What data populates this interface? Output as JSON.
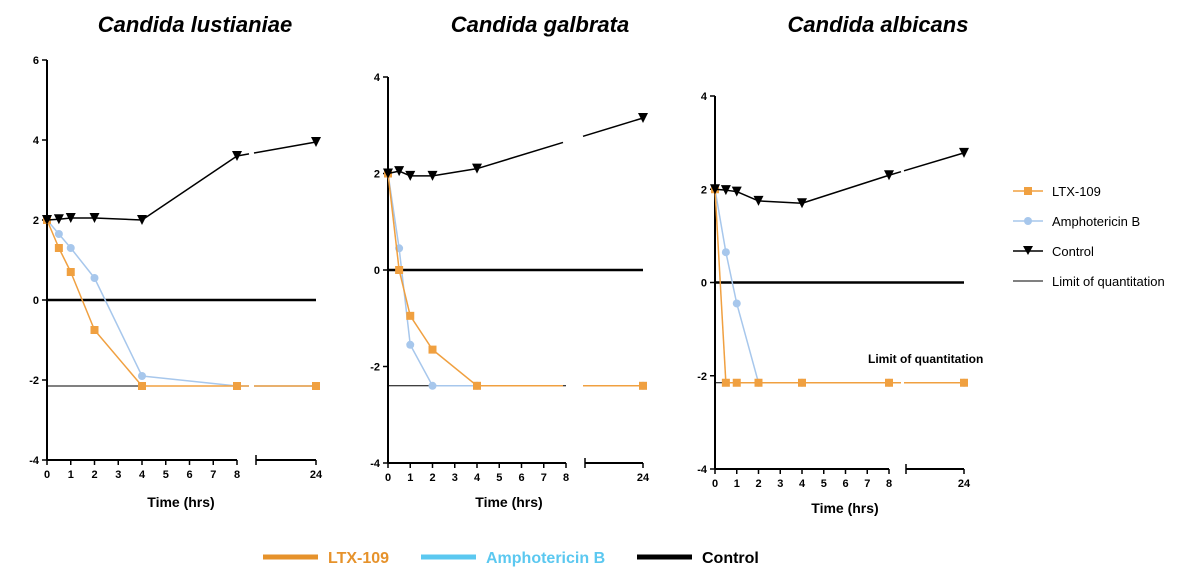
{
  "chart_data": [
    {
      "type": "line",
      "title": "Candida lustianiae",
      "xlabel": "Time (hrs)",
      "ylabel": "",
      "ylim": [
        -4,
        6
      ],
      "yticks": [
        "-4",
        "-2",
        "0",
        "2",
        "4",
        "6"
      ],
      "xticks_main": [
        "0",
        "1",
        "2",
        "3",
        "4",
        "5",
        "6",
        "7",
        "8"
      ],
      "xticks_break": [
        "24"
      ],
      "limit_of_quantitation": -2.15,
      "reference_line": 0,
      "series": [
        {
          "name": "LTX-109",
          "x": [
            0,
            0.5,
            1,
            2,
            4,
            8,
            24
          ],
          "y": [
            2.0,
            1.3,
            0.7,
            -0.75,
            -2.15,
            -2.15,
            -2.15
          ]
        },
        {
          "name": "Amphotericin B",
          "x": [
            0,
            0.5,
            1,
            2,
            4,
            8,
            24
          ],
          "y": [
            2.0,
            1.65,
            1.3,
            0.55,
            -1.9,
            -2.15,
            -2.15
          ]
        },
        {
          "name": "Control",
          "x": [
            0,
            0.5,
            1,
            2,
            4,
            8,
            24
          ],
          "y": [
            2.0,
            2.02,
            2.05,
            2.05,
            2.0,
            3.6,
            3.95
          ]
        }
      ]
    },
    {
      "type": "line",
      "title": "Candida galbrata",
      "xlabel": "Time (hrs)",
      "ylabel": "",
      "ylim": [
        -4,
        4
      ],
      "yticks": [
        "-4",
        "-2",
        "0",
        "2",
        "4"
      ],
      "xticks_main": [
        "0",
        "1",
        "2",
        "3",
        "4",
        "5",
        "6",
        "7",
        "8"
      ],
      "xticks_break": [
        "24"
      ],
      "limit_of_quantitation": -2.4,
      "reference_line": 0,
      "series": [
        {
          "name": "LTX-109",
          "x": [
            0,
            0.5,
            1,
            2,
            4,
            24
          ],
          "y": [
            2.0,
            0.0,
            -0.95,
            -1.65,
            -2.4,
            -2.4
          ]
        },
        {
          "name": "Amphotericin B",
          "x": [
            0,
            0.5,
            1,
            2,
            4,
            24
          ],
          "y": [
            2.0,
            0.45,
            -1.55,
            -2.4,
            -2.4,
            -2.4
          ]
        },
        {
          "name": "Control",
          "x": [
            0,
            0.5,
            1,
            2,
            4,
            24
          ],
          "y": [
            2.0,
            2.05,
            1.95,
            1.95,
            2.1,
            3.15
          ]
        }
      ]
    },
    {
      "type": "line",
      "title": "Candida albicans",
      "xlabel": "Time (hrs)",
      "ylabel": "",
      "ylim": [
        -4,
        4
      ],
      "yticks": [
        "-4",
        "-2",
        "0",
        "2",
        "4"
      ],
      "xticks_main": [
        "0",
        "1",
        "2",
        "3",
        "4",
        "5",
        "6",
        "7",
        "8"
      ],
      "xticks_break": [
        "24"
      ],
      "limit_of_quantitation": -2.15,
      "reference_line": 0,
      "annotation": "Limit of quantitation",
      "series": [
        {
          "name": "LTX-109",
          "x": [
            0,
            0.5,
            1,
            2,
            4,
            8,
            24
          ],
          "y": [
            2.0,
            -2.15,
            -2.15,
            -2.15,
            -2.15,
            -2.15,
            -2.15
          ]
        },
        {
          "name": "Amphotericin B",
          "x": [
            0,
            0.5,
            1,
            2,
            4,
            8,
            24
          ],
          "y": [
            2.0,
            0.65,
            -0.45,
            -2.15,
            -2.15,
            -2.15,
            -2.15
          ]
        },
        {
          "name": "Control",
          "x": [
            0,
            0.5,
            1,
            2,
            4,
            8,
            24
          ],
          "y": [
            2.0,
            1.98,
            1.95,
            1.75,
            1.7,
            2.3,
            2.78
          ]
        }
      ]
    }
  ],
  "legend_right": {
    "items": [
      {
        "label": "LTX-109",
        "color": "#F0A040",
        "marker": "square"
      },
      {
        "label": "Amphotericin B",
        "color": "#A7C7EC",
        "marker": "circle"
      },
      {
        "label": "Control",
        "color": "#000000",
        "marker": "triangle-down"
      },
      {
        "label": "Limit of quantitation",
        "color": "#000000",
        "marker": "line"
      }
    ]
  },
  "legend_bottom": {
    "items": [
      {
        "label": "LTX-109",
        "color": "#E6922B"
      },
      {
        "label": "Amphotericin B",
        "color": "#5BC8F0"
      },
      {
        "label": "Control",
        "color": "#000000"
      }
    ]
  },
  "colors": {
    "ltx": "#F0A040",
    "ampho": "#A7C7EC",
    "control": "#000000"
  }
}
